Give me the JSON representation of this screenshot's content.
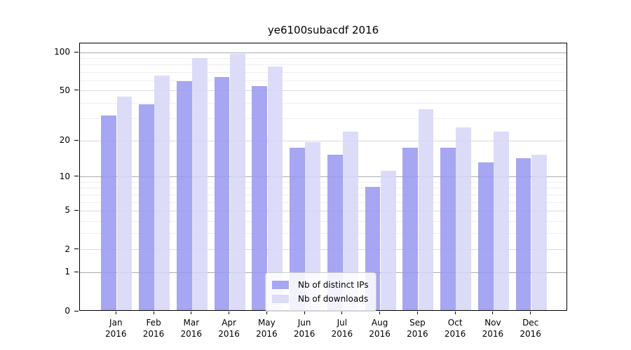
{
  "figure": {
    "title": "ye6100subacdf 2016"
  },
  "chart_data": {
    "type": "bar",
    "title": "ye6100subacdf 2016",
    "categories": [
      "Jan",
      "Feb",
      "Mar",
      "Apr",
      "May",
      "Jun",
      "Jul",
      "Aug",
      "Sep",
      "Oct",
      "Nov",
      "Dec"
    ],
    "category_sublabel": "2016",
    "series": [
      {
        "name": "Nb of distinct IPs",
        "color": "rgba(150,150,240,0.85)",
        "values": [
          31,
          38,
          58,
          63,
          53,
          17,
          15,
          8,
          17,
          17,
          13,
          14
        ]
      },
      {
        "name": "Nb of downloads",
        "color": "rgba(214,214,248,0.85)",
        "values": [
          44,
          64,
          88,
          95,
          76,
          19,
          23,
          11,
          35,
          25,
          23,
          15
        ]
      }
    ],
    "yscale": "log1p",
    "ylim": [
      0,
      118
    ],
    "ytick_values": [
      0,
      1,
      2,
      5,
      10,
      20,
      50,
      100
    ],
    "grid": {
      "decade_lines": [
        1,
        10,
        100
      ],
      "major_lines": [
        2,
        5,
        20,
        50
      ],
      "minor_lines": [
        3,
        4,
        6,
        7,
        8,
        9,
        30,
        40,
        60,
        70,
        80,
        90
      ],
      "decade_color": "#ababab",
      "major_color": "#d9d9d9",
      "minor_color": "#eeeeee"
    },
    "legend": {
      "position": "bottom-center",
      "entries": [
        {
          "label": "Nb of distinct IPs",
          "color": "rgba(150,150,240,0.85)"
        },
        {
          "label": "Nb of downloads",
          "color": "rgba(214,214,248,0.85)"
        }
      ]
    }
  }
}
